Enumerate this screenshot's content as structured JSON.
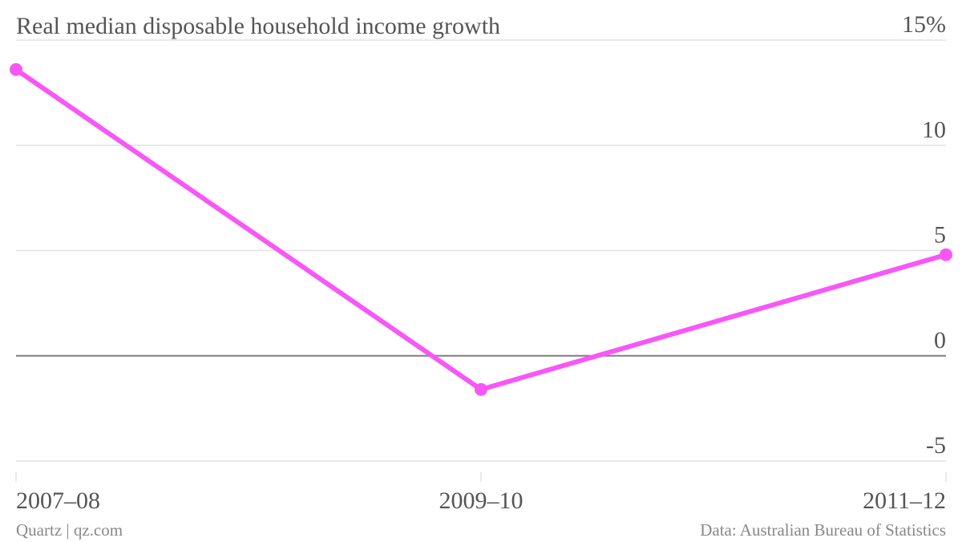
{
  "chart_data": {
    "type": "line",
    "title": "Real median disposable household income growth",
    "categories": [
      "2007–08",
      "2009–10",
      "2011–12"
    ],
    "series": [
      {
        "values": [
          13.6,
          -1.6,
          4.8
        ],
        "color": "#f757f7"
      }
    ],
    "y_ticks": [
      {
        "value": 15,
        "label": "15%"
      },
      {
        "value": 10,
        "label": "10"
      },
      {
        "value": 5,
        "label": "5"
      },
      {
        "value": 0,
        "label": "0"
      },
      {
        "value": -5,
        "label": "-5"
      }
    ],
    "ylim": [
      -5,
      15
    ],
    "xlabel": "",
    "ylabel": "",
    "grid": true,
    "zero_line": true
  },
  "footer": {
    "source_left": "Quartz | qz.com",
    "source_right": "Data: Australian Bureau of Statistics"
  },
  "colors": {
    "line": "#f757f7",
    "grid": "#e3e3e3",
    "zero_line": "#7f7f7f",
    "text": "#555555",
    "footer_text": "#888888"
  }
}
